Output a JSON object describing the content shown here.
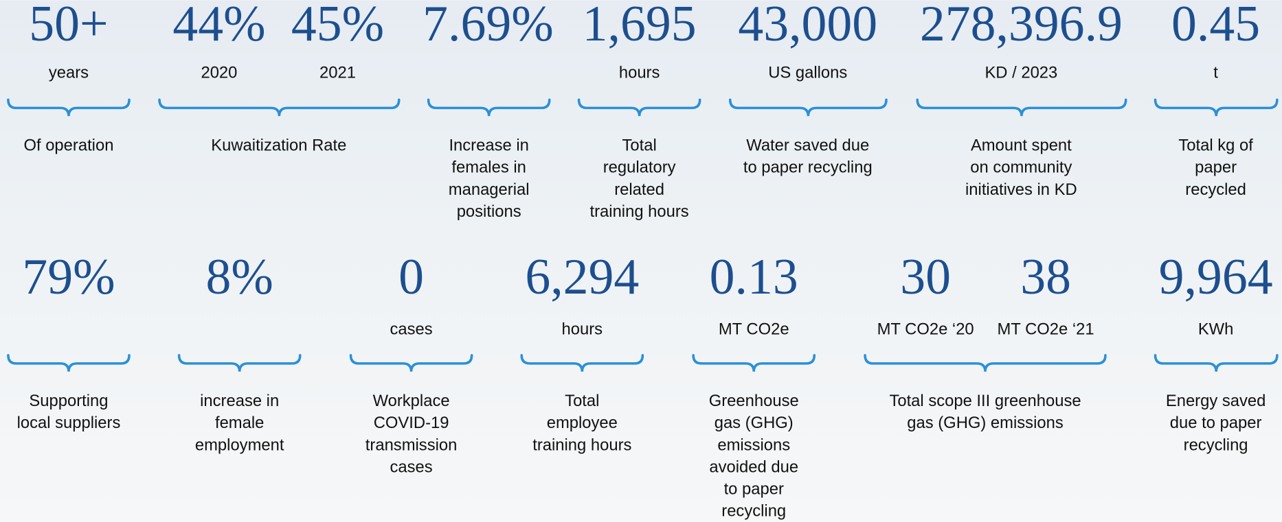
{
  "rows": [
    {
      "items": [
        {
          "figures": [
            {
              "value": "50+",
              "unit": "years"
            }
          ],
          "description": [
            "Of operation"
          ]
        },
        {
          "figures": [
            {
              "value": "44%",
              "unit": "2020"
            },
            {
              "value": "45%",
              "unit": "2021"
            }
          ],
          "description": [
            "Kuwaitization Rate"
          ]
        },
        {
          "figures": [
            {
              "value": "7.69%"
            }
          ],
          "description": [
            "Increase in",
            "females in",
            "managerial",
            "positions"
          ]
        },
        {
          "figures": [
            {
              "value": "1,695",
              "unit": "hours"
            }
          ],
          "description": [
            "Total",
            "regulatory",
            "related",
            "training hours"
          ]
        },
        {
          "figures": [
            {
              "value": "43,000",
              "unit": "US gallons"
            }
          ],
          "description": [
            "Water saved due",
            "to paper recycling"
          ]
        },
        {
          "figures": [
            {
              "value": "278,396.9",
              "unit": "KD / 2023"
            }
          ],
          "description": [
            "Amount spent",
            "on community",
            "initiatives in KD"
          ]
        },
        {
          "figures": [
            {
              "value": "0.45",
              "unit": "t"
            }
          ],
          "description": [
            "Total kg of",
            "paper",
            "recycled"
          ]
        }
      ]
    },
    {
      "items": [
        {
          "figures": [
            {
              "value": "79%"
            }
          ],
          "description": [
            "Supporting",
            "local suppliers"
          ]
        },
        {
          "figures": [
            {
              "value": "8%"
            }
          ],
          "description": [
            "increase in",
            "female",
            "employment"
          ]
        },
        {
          "figures": [
            {
              "value": "0",
              "unit": "cases"
            }
          ],
          "description": [
            "Workplace",
            "COVID-19",
            "transmission",
            "cases"
          ]
        },
        {
          "figures": [
            {
              "value": "6,294",
              "unit": "hours"
            }
          ],
          "description": [
            "Total",
            "employee",
            "training hours"
          ]
        },
        {
          "figures": [
            {
              "value": "0.13",
              "unit": "MT CO2e"
            }
          ],
          "description": [
            "Greenhouse",
            "gas (GHG)",
            "emissions",
            "avoided due",
            "to paper",
            "recycling"
          ]
        },
        {
          "figures": [
            {
              "value": "30",
              "unit": "MT CO2e ‘20"
            },
            {
              "value": "38",
              "unit": "MT CO2e ‘21"
            }
          ],
          "description": [
            "Total scope III greenhouse",
            "gas (GHG) emissions"
          ]
        },
        {
          "figures": [
            {
              "value": "9,964",
              "unit": "KWh"
            }
          ],
          "description": [
            "Energy saved",
            "due to paper",
            "recycling"
          ]
        }
      ]
    }
  ]
}
